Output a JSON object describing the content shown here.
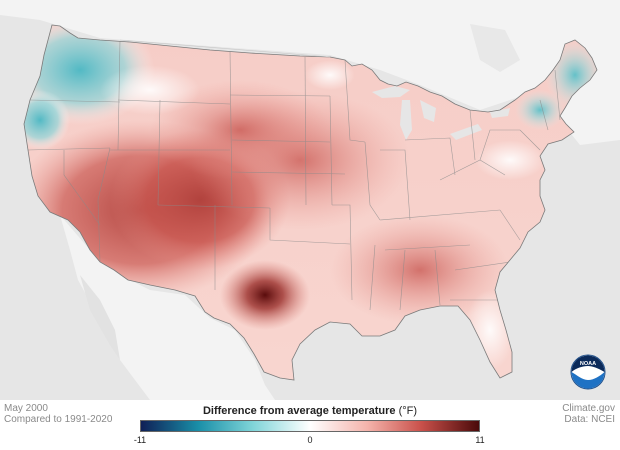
{
  "map": {
    "month_label": "May 2000",
    "baseline_label": "Compared to 1991-2020",
    "source_label": "Climate.gov",
    "data_credit": "Data: NCEI"
  },
  "legend": {
    "title": "Difference from average temperature",
    "unit": "(°F)",
    "min_label": "-11",
    "mid_label": "0",
    "max_label": "11",
    "colors": [
      "#0f1f56",
      "#1a8fa8",
      "#7fd4d8",
      "#ffffff",
      "#f4b3ab",
      "#c9504a",
      "#4a0a0a"
    ]
  },
  "logo": {
    "text": "NOAA",
    "color": "#1f72c4"
  },
  "colors": {
    "land_outside": "#f5f5f5",
    "water": "#e6e6e6",
    "state_lines": "#7a7a7a"
  }
}
